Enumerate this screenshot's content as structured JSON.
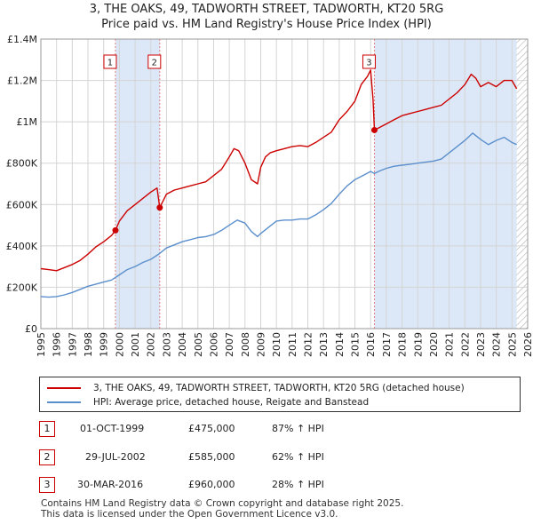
{
  "title": {
    "line1": "3, THE OAKS, 49, TADWORTH STREET, TADWORTH, KT20 5RG",
    "line2": "Price paid vs. HM Land Registry's House Price Index (HPI)"
  },
  "colors": {
    "property_line": "#cc0000",
    "hpi_line": "#5b8fcc",
    "shade": "#dce8f8",
    "grid": "#d4d4d4",
    "vline": "#e08080"
  },
  "legend": {
    "property_label": "3, THE OAKS, 49, TADWORTH STREET, TADWORTH, KT20 5RG (detached house)",
    "hpi_label": "HPI: Average price, detached house, Reigate and Banstead"
  },
  "transactions": [
    {
      "num": "1",
      "date": "01-OCT-1999",
      "price": "£475,000",
      "hpi": "87% ↑ HPI"
    },
    {
      "num": "2",
      "date": "29-JUL-2002",
      "price": "£585,000",
      "hpi": "62% ↑ HPI"
    },
    {
      "num": "3",
      "date": "30-MAR-2016",
      "price": "£960,000",
      "hpi": "28% ↑ HPI"
    }
  ],
  "footer": {
    "line1": "Contains HM Land Registry data © Crown copyright and database right 2025.",
    "line2": "This data is licensed under the Open Government Licence v3.0."
  },
  "chart_data": {
    "type": "line",
    "title": "Price paid vs. HM Land Registry's House Price Index (HPI)",
    "xlim": [
      1995,
      2026
    ],
    "ylim": [
      0,
      1400000
    ],
    "x_ticks": [
      "1995",
      "1996",
      "1997",
      "1998",
      "1999",
      "2000",
      "2001",
      "2002",
      "2003",
      "2004",
      "2005",
      "2006",
      "2007",
      "2008",
      "2009",
      "2010",
      "2011",
      "2012",
      "2013",
      "2014",
      "2015",
      "2016",
      "2017",
      "2018",
      "2019",
      "2020",
      "2021",
      "2022",
      "2023",
      "2024",
      "2025",
      "2026"
    ],
    "y_ticks": [
      {
        "value": 0,
        "label": "£0"
      },
      {
        "value": 200000,
        "label": "£200K"
      },
      {
        "value": 400000,
        "label": "£400K"
      },
      {
        "value": 600000,
        "label": "£600K"
      },
      {
        "value": 800000,
        "label": "£800K"
      },
      {
        "value": 1000000,
        "label": "£1M"
      },
      {
        "value": 1200000,
        "label": "£1.2M"
      },
      {
        "value": 1400000,
        "label": "£1.4M"
      }
    ],
    "shaded_ranges": [
      [
        1999.75,
        2002.57
      ],
      [
        2016.24,
        2025.3
      ]
    ],
    "hatch_start": 2025.3,
    "sales": [
      {
        "label": "1",
        "x": 1999.75,
        "y": 475000
      },
      {
        "label": "2",
        "x": 2002.57,
        "y": 585000
      },
      {
        "label": "3",
        "x": 2016.24,
        "y": 960000
      }
    ],
    "series": [
      {
        "name": "3, THE OAKS, 49, TADWORTH STREET, TADWORTH, KT20 5RG (detached house)",
        "x": [
          1995,
          1995.5,
          1996,
          1996.5,
          1997,
          1997.5,
          1998,
          1998.5,
          1999,
          1999.5,
          1999.75,
          2000,
          2000.5,
          2001,
          2001.5,
          2002,
          2002.4,
          2002.57,
          2003,
          2003.5,
          2004,
          2004.5,
          2005,
          2005.5,
          2006,
          2006.5,
          2007,
          2007.3,
          2007.6,
          2008,
          2008.4,
          2008.8,
          2009,
          2009.3,
          2009.6,
          2010,
          2010.5,
          2011,
          2011.5,
          2012,
          2012.5,
          2013,
          2013.5,
          2014,
          2014.5,
          2015,
          2015.4,
          2015.8,
          2016.0,
          2016.15,
          2016.24,
          2016.5,
          2017,
          2017.5,
          2018,
          2018.5,
          2019,
          2019.5,
          2020,
          2020.5,
          2021,
          2021.5,
          2022,
          2022.4,
          2022.7,
          2023,
          2023.5,
          2024,
          2024.5,
          2025,
          2025.3
        ],
        "y": [
          290000,
          285000,
          280000,
          295000,
          310000,
          330000,
          360000,
          395000,
          420000,
          450000,
          475000,
          520000,
          570000,
          600000,
          630000,
          660000,
          680000,
          585000,
          650000,
          670000,
          680000,
          690000,
          700000,
          710000,
          740000,
          770000,
          830000,
          870000,
          860000,
          800000,
          720000,
          700000,
          780000,
          830000,
          850000,
          860000,
          870000,
          880000,
          885000,
          880000,
          900000,
          925000,
          950000,
          1010000,
          1050000,
          1100000,
          1180000,
          1220000,
          1250000,
          1110000,
          960000,
          970000,
          990000,
          1010000,
          1030000,
          1040000,
          1050000,
          1060000,
          1070000,
          1080000,
          1110000,
          1140000,
          1180000,
          1230000,
          1210000,
          1170000,
          1190000,
          1170000,
          1200000,
          1200000,
          1160000
        ]
      },
      {
        "name": "HPI: Average price, detached house, Reigate and Banstead",
        "x": [
          1995,
          1995.5,
          1996,
          1996.5,
          1997,
          1997.5,
          1998,
          1998.5,
          1999,
          1999.5,
          2000,
          2000.5,
          2001,
          2001.5,
          2002,
          2002.5,
          2003,
          2003.5,
          2004,
          2004.5,
          2005,
          2005.5,
          2006,
          2006.5,
          2007,
          2007.5,
          2008,
          2008.4,
          2008.8,
          2009,
          2009.5,
          2010,
          2010.5,
          2011,
          2011.5,
          2012,
          2012.5,
          2013,
          2013.5,
          2014,
          2014.5,
          2015,
          2015.5,
          2016,
          2016.24,
          2016.5,
          2017,
          2017.5,
          2018,
          2018.5,
          2019,
          2019.5,
          2020,
          2020.5,
          2021,
          2021.5,
          2022,
          2022.5,
          2023,
          2023.5,
          2024,
          2024.5,
          2025,
          2025.3
        ],
        "y": [
          155000,
          152000,
          155000,
          163000,
          175000,
          190000,
          205000,
          215000,
          225000,
          235000,
          260000,
          285000,
          300000,
          320000,
          335000,
          360000,
          390000,
          405000,
          420000,
          430000,
          440000,
          445000,
          455000,
          475000,
          500000,
          525000,
          510000,
          470000,
          445000,
          460000,
          490000,
          520000,
          525000,
          525000,
          530000,
          530000,
          550000,
          575000,
          605000,
          650000,
          690000,
          720000,
          740000,
          760000,
          750000,
          760000,
          775000,
          785000,
          790000,
          795000,
          800000,
          805000,
          810000,
          820000,
          850000,
          880000,
          910000,
          945000,
          915000,
          890000,
          910000,
          925000,
          900000,
          890000
        ]
      }
    ]
  }
}
